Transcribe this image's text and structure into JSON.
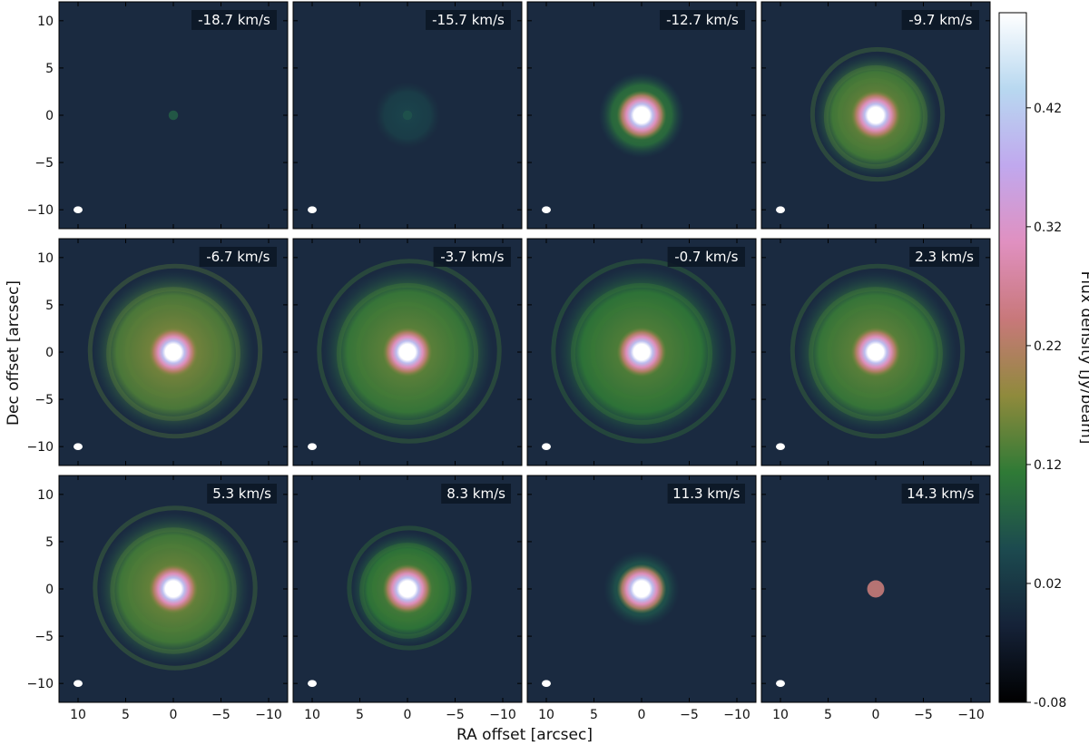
{
  "figure": {
    "xlabel": "RA offset [arcsec]",
    "ylabel": "Dec offset [arcsec]",
    "colorbar_label": "Flux density [Jy/beam]",
    "colorbar_ticks": [
      "0.42",
      "0.32",
      "0.22",
      "0.12",
      "0.02",
      "-0.08"
    ],
    "x_ticks": [
      "10",
      "5",
      "0",
      "−5",
      "−10"
    ],
    "y_ticks": [
      "10",
      "5",
      "0",
      "−5",
      "−10"
    ],
    "colormap": [
      "#000000",
      "#152238",
      "#1c4a4f",
      "#2f7a36",
      "#8f8a3c",
      "#c8787a",
      "#e090c0",
      "#c0a8ee",
      "#b8d8f0",
      "#ffffff"
    ],
    "background_color": "#1a2a40"
  },
  "chart_data": {
    "type": "heatmap",
    "title": "",
    "xlabel": "RA offset [arcsec]",
    "ylabel": "Dec offset [arcsec]",
    "xlim": [
      12,
      -12
    ],
    "ylim": [
      -12,
      12
    ],
    "colorbar": {
      "label": "Flux density [Jy/beam]",
      "range": [
        -0.08,
        0.5
      ],
      "ticks": [
        -0.08,
        0.02,
        0.12,
        0.22,
        0.32,
        0.42
      ]
    },
    "beam_marker": "white ellipse at lower-left of each panel",
    "panels": [
      {
        "velocity": "-18.7 km/s",
        "core": 0.06,
        "envelope_radius": 0.5,
        "envelope_level": 0.0,
        "rings": false
      },
      {
        "velocity": "-15.7 km/s",
        "core": 0.05,
        "envelope_radius": 3.5,
        "envelope_level": 0.04,
        "rings": false
      },
      {
        "velocity": "-12.7 km/s",
        "core": 0.5,
        "envelope_radius": 4.5,
        "envelope_level": 0.13,
        "rings": false
      },
      {
        "velocity": "-9.7 km/s",
        "core": 0.5,
        "envelope_radius": 6.5,
        "envelope_level": 0.17,
        "rings": true
      },
      {
        "velocity": "-6.7 km/s",
        "core": 0.5,
        "envelope_radius": 8.5,
        "envelope_level": 0.18,
        "rings": true
      },
      {
        "velocity": "-3.7 km/s",
        "core": 0.5,
        "envelope_radius": 9.0,
        "envelope_level": 0.16,
        "rings": true
      },
      {
        "velocity": "-0.7 km/s",
        "core": 0.5,
        "envelope_radius": 9.0,
        "envelope_level": 0.15,
        "rings": true
      },
      {
        "velocity": "2.3 km/s",
        "core": 0.5,
        "envelope_radius": 8.5,
        "envelope_level": 0.16,
        "rings": true
      },
      {
        "velocity": "5.3 km/s",
        "core": 0.5,
        "envelope_radius": 8.0,
        "envelope_level": 0.17,
        "rings": true
      },
      {
        "velocity": "8.3 km/s",
        "core": 0.5,
        "envelope_radius": 6.0,
        "envelope_level": 0.15,
        "rings": true
      },
      {
        "velocity": "11.3 km/s",
        "core": 0.5,
        "envelope_radius": 4.0,
        "envelope_level": 0.08,
        "rings": false
      },
      {
        "velocity": "14.3 km/s",
        "core": 0.2,
        "envelope_radius": 1.0,
        "envelope_level": 0.05,
        "rings": false
      }
    ]
  }
}
